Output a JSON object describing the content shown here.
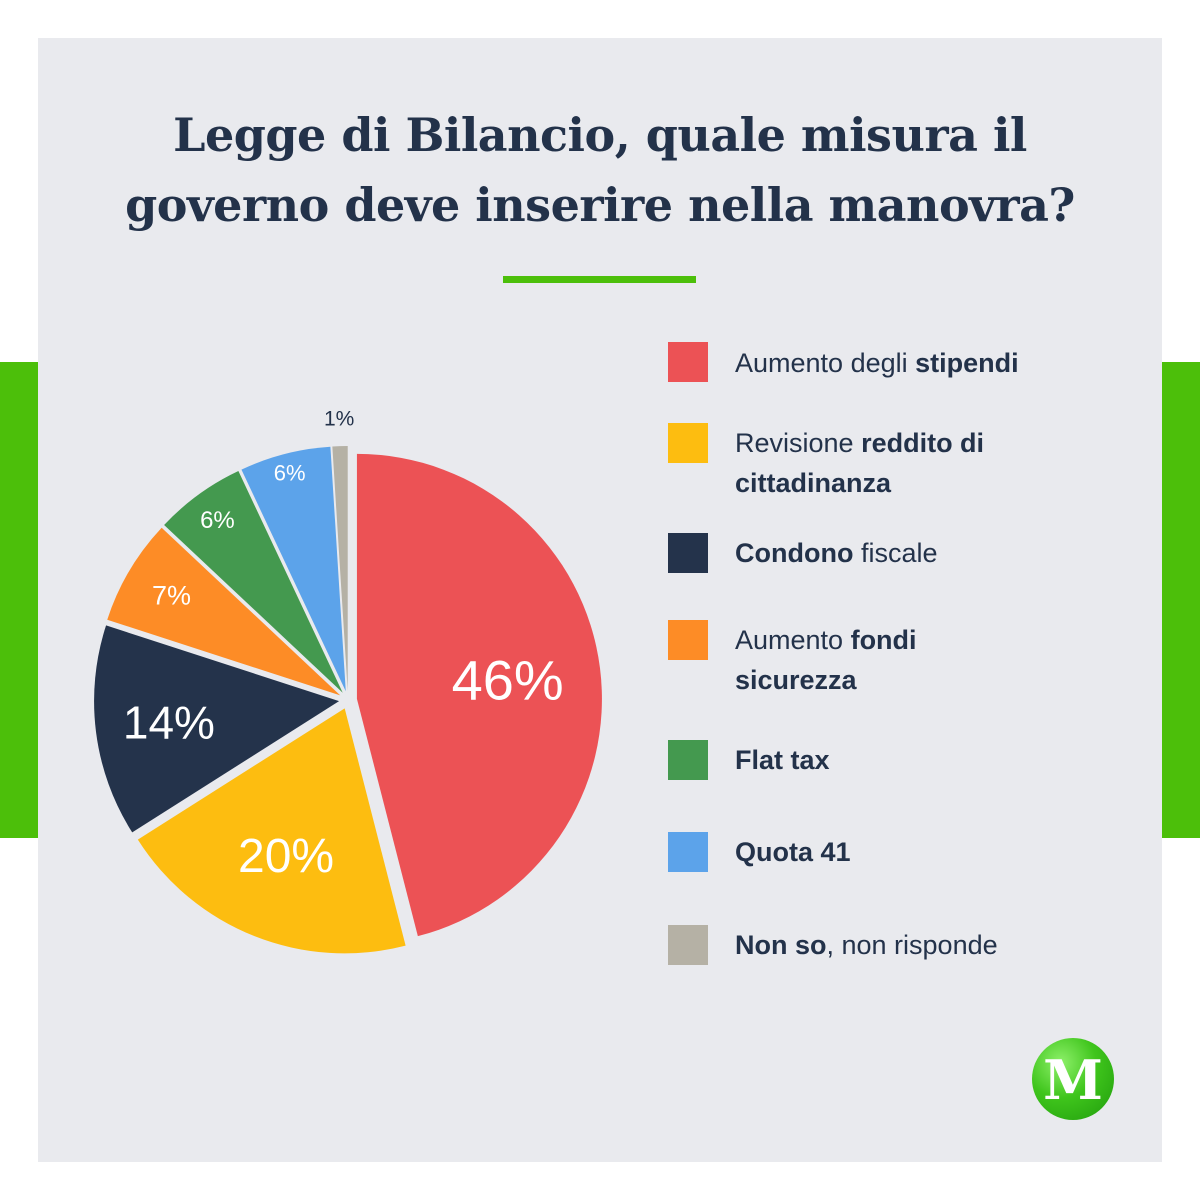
{
  "title_lines": [
    "Legge di Bilancio, quale misura il",
    "governo deve inserire nella manovra?"
  ],
  "chart_data": {
    "type": "pie",
    "title": "Legge di Bilancio, quale misura il governo deve inserire nella manovra?",
    "slices": [
      {
        "label": "Aumento degli stipendi",
        "value": 46,
        "display": "46%",
        "color": "#ec5255"
      },
      {
        "label": "Revisione reddito di cittadinanza",
        "value": 20,
        "display": "20%",
        "color": "#fdbd10"
      },
      {
        "label": "Condono fiscale",
        "value": 14,
        "display": "14%",
        "color": "#24334b"
      },
      {
        "label": "Aumento fondi sicurezza",
        "value": 7,
        "display": "7%",
        "color": "#fd8c26"
      },
      {
        "label": "Flat tax",
        "value": 6,
        "display": "6%",
        "color": "#44994f"
      },
      {
        "label": "Quota 41",
        "value": 6,
        "display": "6%",
        "color": "#5ca3ea"
      },
      {
        "label": "Non so, non risponde",
        "value": 1,
        "display": "1%",
        "color": "#b5b1a5"
      }
    ]
  },
  "legend": [
    {
      "parts": [
        {
          "text": "Aumento degli ",
          "bold": false
        },
        {
          "text": "stipendi",
          "bold": true
        }
      ],
      "color": "#ec5255"
    },
    {
      "parts": [
        {
          "text": "Revisione ",
          "bold": false
        },
        {
          "text": "reddito di cittadinanza",
          "bold": true
        }
      ],
      "color": "#fdbd10"
    },
    {
      "parts": [
        {
          "text": "Condono",
          "bold": true
        },
        {
          "text": " fiscale",
          "bold": false
        }
      ],
      "color": "#24334b"
    },
    {
      "parts": [
        {
          "text": "Aumento ",
          "bold": false
        },
        {
          "text": "fondi sicurezza",
          "bold": true
        }
      ],
      "color": "#fd8c26"
    },
    {
      "parts": [
        {
          "text": "Flat tax",
          "bold": true
        }
      ],
      "color": "#44994f"
    },
    {
      "parts": [
        {
          "text": "Quota 41",
          "bold": true
        }
      ],
      "color": "#5ca3ea"
    },
    {
      "parts": [
        {
          "text": "Non so",
          "bold": true
        },
        {
          "text": ", non risponde",
          "bold": false
        }
      ],
      "color": "#b5b1a5"
    }
  ],
  "colors": {
    "background": "#e9eaee",
    "accent": "#4cbf0a",
    "text": "#23324a"
  }
}
